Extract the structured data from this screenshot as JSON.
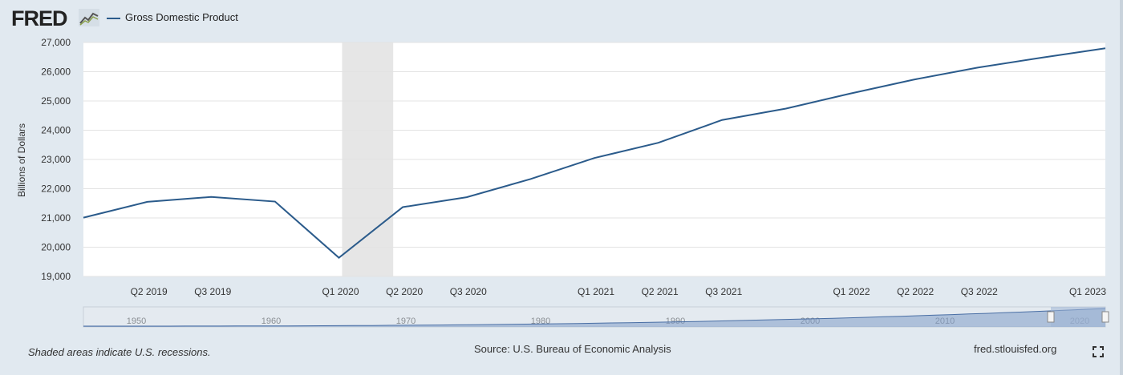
{
  "header": {
    "logo_text": "FRED",
    "legend_label": "Gross Domestic Product"
  },
  "chart_data": {
    "type": "line",
    "title": "Gross Domestic Product",
    "ylabel": "Billions of Dollars",
    "xlabel": "",
    "ylim": [
      19000,
      27000
    ],
    "y_ticks": [
      19000,
      20000,
      21000,
      22000,
      23000,
      24000,
      25000,
      26000,
      27000
    ],
    "y_tick_labels": [
      "19,000",
      "20,000",
      "21,000",
      "22,000",
      "23,000",
      "24,000",
      "25,000",
      "26,000",
      "27,000"
    ],
    "x_tick_labels": [
      "Q2 2019",
      "Q3 2019",
      "Q1 2020",
      "Q2 2020",
      "Q3 2020",
      "Q1 2021",
      "Q2 2021",
      "Q3 2021",
      "Q1 2022",
      "Q2 2022",
      "Q3 2022",
      "Q1 2023"
    ],
    "series": [
      {
        "name": "Gross Domestic Product",
        "color": "#2b5b8b",
        "x": [
          "Q1 2019",
          "Q2 2019",
          "Q3 2019",
          "Q4 2019",
          "Q1 2020",
          "Q2 2020",
          "Q3 2020",
          "Q4 2020",
          "Q1 2021",
          "Q2 2021",
          "Q3 2021",
          "Q4 2021",
          "Q1 2022",
          "Q2 2022",
          "Q3 2022",
          "Q4 2022",
          "Q1 2023"
        ],
        "values": [
          21010,
          21550,
          21720,
          21560,
          19640,
          21370,
          21710,
          22330,
          23050,
          23570,
          24350,
          24740,
          25250,
          25730,
          26140,
          26480,
          26800
        ]
      }
    ],
    "recession": {
      "start": "Q1 2020",
      "end": "Q2 2020"
    },
    "navigator": {
      "year_labels": [
        "1950",
        "1960",
        "1970",
        "1980",
        "1990",
        "2000",
        "2010",
        "2020"
      ]
    },
    "grid": true
  },
  "footer": {
    "note": "Shaded areas indicate U.S. recessions.",
    "source": "Source: U.S. Bureau of Economic Analysis",
    "site": "fred.stlouisfed.org"
  },
  "colors": {
    "line": "#2b5b8b",
    "recession": "#e6e6e6",
    "background": "#e1e9f0",
    "navigator_fill": "#7f9cc8"
  }
}
